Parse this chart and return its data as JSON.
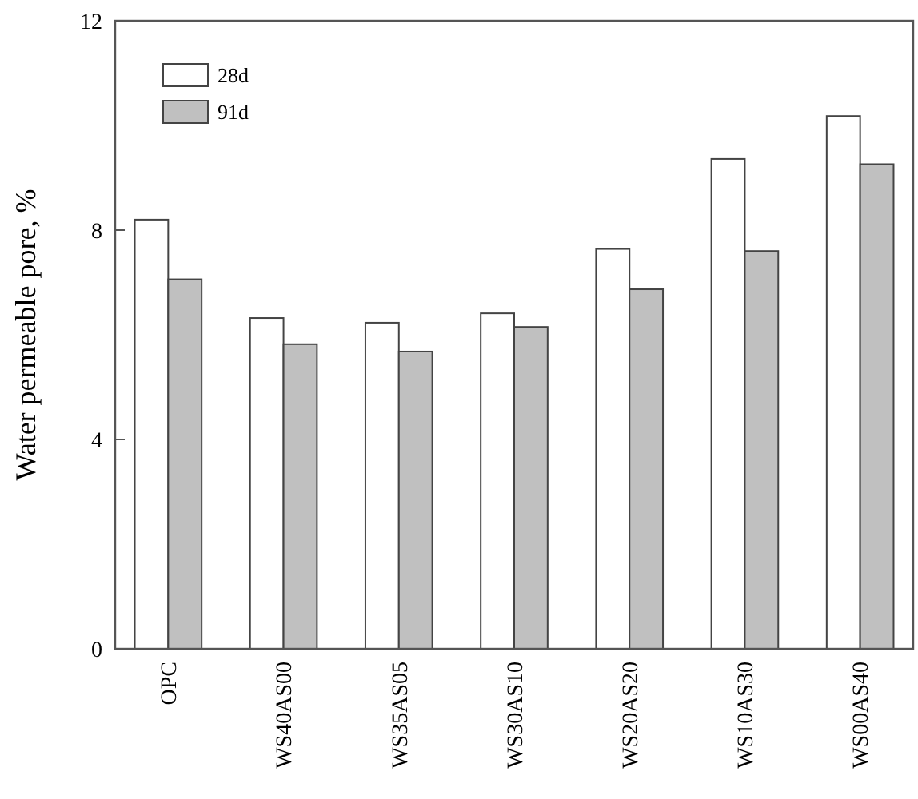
{
  "chart_data": {
    "type": "bar",
    "ylabel": "Water permeable pore, %",
    "categories": [
      "OPC",
      "WS40AS00",
      "WS35AS05",
      "WS30AS10",
      "WS20AS20",
      "WS10AS30",
      "WS00AS40"
    ],
    "series": [
      {
        "name": "28d",
        "color": "#ffffff",
        "values": [
          8.2,
          6.32,
          6.23,
          6.41,
          7.64,
          9.36,
          10.18
        ]
      },
      {
        "name": "91d",
        "color": "#c0c0c0",
        "values": [
          7.06,
          5.82,
          5.68,
          6.15,
          6.87,
          7.6,
          9.26
        ]
      }
    ],
    "ylim": [
      0,
      12
    ],
    "yticks": [
      0,
      4,
      8,
      12
    ],
    "legend": "top left"
  }
}
